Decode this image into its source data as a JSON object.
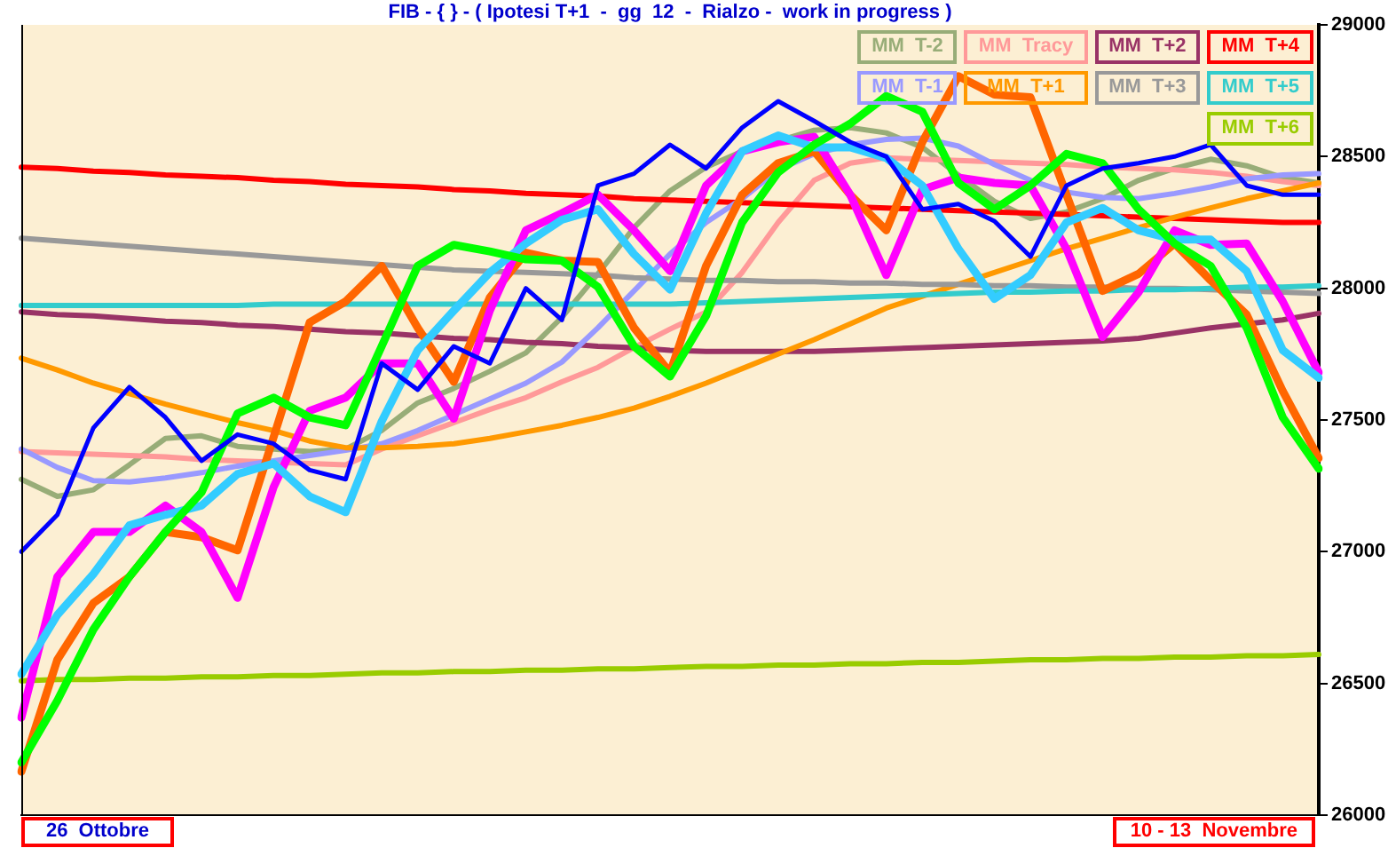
{
  "chart_data": {
    "type": "line",
    "title": "FIB - { } - ( Ipotesi T+1  -  gg  12  -  Rialzo -  work in progress )",
    "categories": [
      null,
      null,
      null,
      null,
      null,
      null,
      null,
      null,
      null,
      null,
      null,
      null,
      null,
      null,
      null,
      null,
      null,
      null,
      null,
      null,
      null,
      null,
      null,
      null,
      null,
      null,
      null,
      null,
      null,
      null,
      null,
      null,
      null,
      null,
      null,
      null,
      null
    ],
    "ylim": [
      26000,
      29000
    ],
    "yticks": [
      26000,
      26500,
      27000,
      27500,
      28000,
      28500,
      29000
    ],
    "legend": "top right",
    "tick_labels": "y",
    "annotations": [
      "26  Ottobre",
      "10 - 13  Novembre"
    ],
    "series": [
      {
        "name": "MM  T-2",
        "color": "#98ad78",
        "values": [
          27275,
          27210,
          27235,
          27330,
          27430,
          27440,
          27400,
          27390,
          27380,
          27390,
          27460,
          27565,
          27620,
          27685,
          27755,
          27890,
          28055,
          28230,
          28370,
          28460,
          28520,
          28560,
          28600,
          28610,
          28590,
          28535,
          28430,
          28330,
          28265,
          28290,
          28340,
          28410,
          28455,
          28490,
          28465,
          28420,
          28400
        ]
      },
      {
        "name": "MM  Tracy",
        "color": "#ff9999",
        "values": [
          27380,
          27375,
          27370,
          27365,
          27360,
          27350,
          27345,
          27340,
          27335,
          27330,
          27390,
          27440,
          27490,
          27540,
          27585,
          27645,
          27700,
          27775,
          27845,
          27910,
          28060,
          28250,
          28410,
          28475,
          28495,
          28490,
          28485,
          28480,
          28475,
          28470,
          28460,
          28455,
          28450,
          28440,
          28425,
          28405,
          28390
        ]
      },
      {
        "name": "MM  T+2",
        "color": "#993366",
        "values": [
          27910,
          27900,
          27895,
          27885,
          27875,
          27870,
          27860,
          27855,
          27845,
          27835,
          27830,
          27820,
          27810,
          27805,
          27795,
          27790,
          27780,
          27775,
          27765,
          27760,
          27760,
          27760,
          27760,
          27765,
          27770,
          27775,
          27780,
          27785,
          27790,
          27795,
          27800,
          27810,
          27830,
          27850,
          27865,
          27880,
          27905
        ]
      },
      {
        "name": "MM  T+4",
        "color": "#ff0000",
        "values": [
          28460,
          28455,
          28445,
          28440,
          28430,
          28425,
          28420,
          28410,
          28405,
          28395,
          28390,
          28385,
          28375,
          28370,
          28360,
          28355,
          28350,
          28340,
          28335,
          28330,
          28325,
          28320,
          28315,
          28310,
          28305,
          28300,
          28295,
          28290,
          28285,
          28280,
          28275,
          28270,
          28265,
          28260,
          28255,
          28250,
          28250
        ]
      },
      {
        "name": "MM  T-1",
        "color": "#9999ff",
        "values": [
          27390,
          27320,
          27270,
          27265,
          27280,
          27300,
          27325,
          27345,
          27365,
          27385,
          27410,
          27460,
          27520,
          27580,
          27640,
          27720,
          27850,
          27990,
          28130,
          28250,
          28340,
          28450,
          28510,
          28545,
          28565,
          28570,
          28540,
          28470,
          28410,
          28365,
          28345,
          28340,
          28360,
          28385,
          28415,
          28430,
          28435
        ]
      },
      {
        "name": "MM  T+1",
        "color": "#ff9900",
        "values": [
          27735,
          27690,
          27640,
          27600,
          27560,
          27525,
          27490,
          27460,
          27420,
          27395,
          27395,
          27400,
          27410,
          27430,
          27455,
          27480,
          27510,
          27545,
          27590,
          27640,
          27695,
          27750,
          27805,
          27865,
          27925,
          27970,
          28015,
          28060,
          28105,
          28150,
          28190,
          28230,
          28270,
          28305,
          28340,
          28370,
          28400
        ]
      },
      {
        "name": "MM  T+3",
        "color": "#999999",
        "values": [
          28190,
          28180,
          28170,
          28160,
          28150,
          28140,
          28130,
          28120,
          28110,
          28100,
          28090,
          28080,
          28070,
          28065,
          28060,
          28055,
          28050,
          28040,
          28035,
          28030,
          28030,
          28025,
          28025,
          28020,
          28020,
          28015,
          28015,
          28010,
          28010,
          28005,
          28005,
          28000,
          28000,
          27995,
          27990,
          27985,
          27980
        ]
      },
      {
        "name": "MM  T+5",
        "color": "#33cccc",
        "values": [
          27935,
          27935,
          27935,
          27935,
          27935,
          27935,
          27935,
          27940,
          27940,
          27940,
          27940,
          27940,
          27940,
          27940,
          27940,
          27940,
          27940,
          27940,
          27940,
          27945,
          27950,
          27955,
          27960,
          27965,
          27970,
          27975,
          27980,
          27985,
          27985,
          27990,
          27990,
          27995,
          27995,
          28000,
          28005,
          28005,
          28010
        ]
      },
      {
        "name": "MM  T+6",
        "color": "#99cc00",
        "values": [
          26510,
          26515,
          26515,
          26520,
          26520,
          26525,
          26525,
          26530,
          26530,
          26535,
          26540,
          26540,
          26545,
          26545,
          26550,
          26550,
          26555,
          26555,
          26560,
          26565,
          26565,
          26570,
          26570,
          26575,
          26575,
          26580,
          26580,
          26585,
          26590,
          26590,
          26595,
          26595,
          26600,
          26600,
          26605,
          26605,
          26610
        ]
      },
      {
        "color": "#ff6600",
        "values": [
          26165,
          26590,
          26805,
          26905,
          27075,
          27055,
          27005,
          27435,
          27870,
          27950,
          28085,
          27850,
          27645,
          27965,
          28135,
          28105,
          28100,
          27850,
          27680,
          28085,
          28355,
          28475,
          28520,
          28355,
          28220,
          28555,
          28805,
          28735,
          28725,
          28355,
          27990,
          28055,
          28170,
          28030,
          27900,
          27610,
          27355
        ]
      },
      {
        "color": "#ff00ff",
        "values": [
          26370,
          26905,
          27075,
          27075,
          27175,
          27075,
          26825,
          27245,
          27535,
          27585,
          27715,
          27715,
          27505,
          27915,
          28220,
          28285,
          28355,
          28220,
          28065,
          28390,
          28520,
          28555,
          28575,
          28355,
          28050,
          28375,
          28420,
          28400,
          28390,
          28150,
          27815,
          27985,
          28220,
          28165,
          28170,
          27950,
          27680
        ]
      },
      {
        "color": "#33ccff",
        "values": [
          26535,
          26760,
          26915,
          27100,
          27140,
          27175,
          27295,
          27335,
          27210,
          27150,
          27495,
          27765,
          27915,
          28060,
          28170,
          28260,
          28300,
          28130,
          27995,
          28285,
          28520,
          28580,
          28535,
          28535,
          28495,
          28390,
          28150,
          27960,
          28050,
          28250,
          28305,
          28220,
          28185,
          28185,
          28065,
          27765,
          27660
        ]
      },
      {
        "color": "#00ff00",
        "values": [
          26200,
          26435,
          26705,
          26905,
          27075,
          27225,
          27525,
          27585,
          27510,
          27480,
          27780,
          28085,
          28165,
          28140,
          28110,
          28105,
          28005,
          27780,
          27665,
          27895,
          28250,
          28440,
          28545,
          28625,
          28730,
          28670,
          28400,
          28300,
          28390,
          28510,
          28475,
          28300,
          28170,
          28085,
          27850,
          27510,
          27315
        ]
      },
      {
        "color": "#0000ff",
        "values": [
          27000,
          27140,
          27470,
          27625,
          27510,
          27345,
          27445,
          27410,
          27310,
          27275,
          27715,
          27615,
          27780,
          27715,
          28000,
          27880,
          28390,
          28435,
          28545,
          28455,
          28610,
          28710,
          28635,
          28555,
          28500,
          28300,
          28320,
          28255,
          28120,
          28390,
          28455,
          28475,
          28500,
          28545,
          28390,
          28355,
          28355
        ]
      }
    ]
  }
}
